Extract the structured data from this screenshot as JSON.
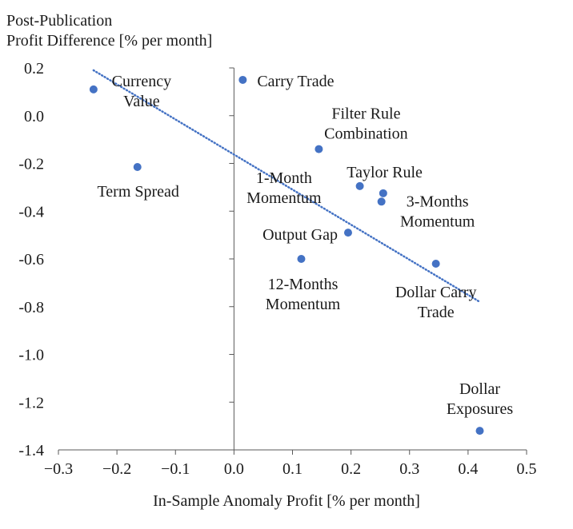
{
  "chart_data": {
    "type": "scatter",
    "ylabel_lines": [
      "Post-Publication",
      "Profit Difference [% per month]"
    ],
    "xlabel": "In-Sample Anomaly Profit [% per month]",
    "xlim": [
      -0.3,
      0.5
    ],
    "ylim": [
      -1.4,
      0.2
    ],
    "x_ticks": [
      "−0.3",
      "−0.2",
      "−0.1",
      "0.0",
      "0.1",
      "0.2",
      "0.3",
      "0.4",
      "0.5"
    ],
    "y_ticks": [
      "0.2",
      "0.0",
      "-0.2",
      "-0.4",
      "-0.6",
      "-0.8",
      "-1.0",
      "-1.2",
      "-1.4"
    ],
    "grid": false,
    "marker_color": "#4472C4",
    "trendline": {
      "style": "dotted",
      "color": "#4472C4",
      "x": [
        -0.24,
        0.42
      ],
      "y": [
        0.19,
        -0.78
      ]
    },
    "points": [
      {
        "label": [
          "Currency",
          "Value"
        ],
        "x": -0.24,
        "y": 0.11
      },
      {
        "label": [
          "Carry Trade"
        ],
        "x": 0.015,
        "y": 0.15
      },
      {
        "label": [
          "Filter Rule",
          "Combination"
        ],
        "x": 0.145,
        "y": -0.14
      },
      {
        "label": [
          "Term Spread"
        ],
        "x": -0.165,
        "y": -0.215
      },
      {
        "label": [
          "Taylor Rule"
        ],
        "x": 0.215,
        "y": -0.295
      },
      {
        "label": [
          "1-Month",
          "Momentum"
        ],
        "x": 0.255,
        "y": -0.325
      },
      {
        "label": [
          "3-Months",
          "Momentum"
        ],
        "x": 0.252,
        "y": -0.36
      },
      {
        "label": [
          "Output Gap"
        ],
        "x": 0.195,
        "y": -0.49
      },
      {
        "label": [
          "12-Months",
          "Momentum"
        ],
        "x": 0.115,
        "y": -0.6
      },
      {
        "label": [
          "Dollar Carry",
          "Trade"
        ],
        "x": 0.345,
        "y": -0.62
      },
      {
        "label": [
          "Dollar",
          "Exposures"
        ],
        "x": 0.42,
        "y": -1.32
      }
    ]
  }
}
